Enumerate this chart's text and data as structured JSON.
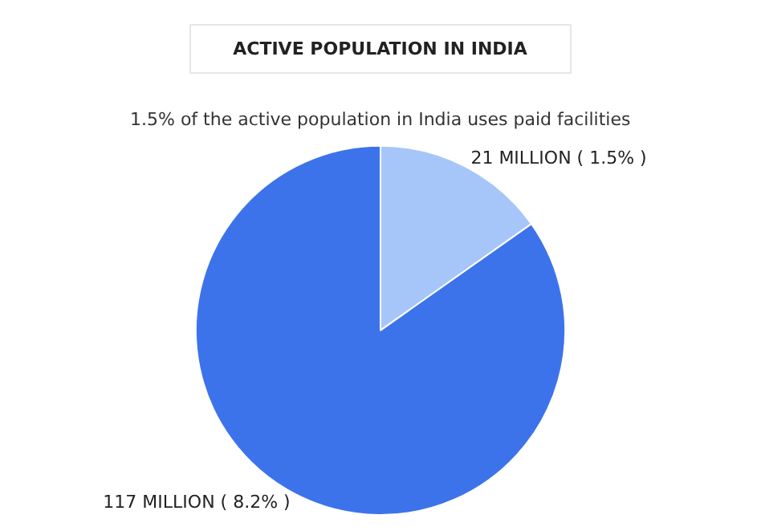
{
  "chart_data": {
    "type": "pie",
    "title": "ACTIVE POPULATION IN INDIA",
    "subtitle": "1.5% of the active population in India uses paid facilities",
    "categories": [
      null,
      null
    ],
    "values": [
      21,
      117
    ],
    "value_labels": [
      "21 MILLION ( 1.5% )",
      "117 MILLION ( 8.2% )"
    ],
    "colors": [
      "#a6c6fa",
      "#3d73ea"
    ],
    "legend": false
  }
}
